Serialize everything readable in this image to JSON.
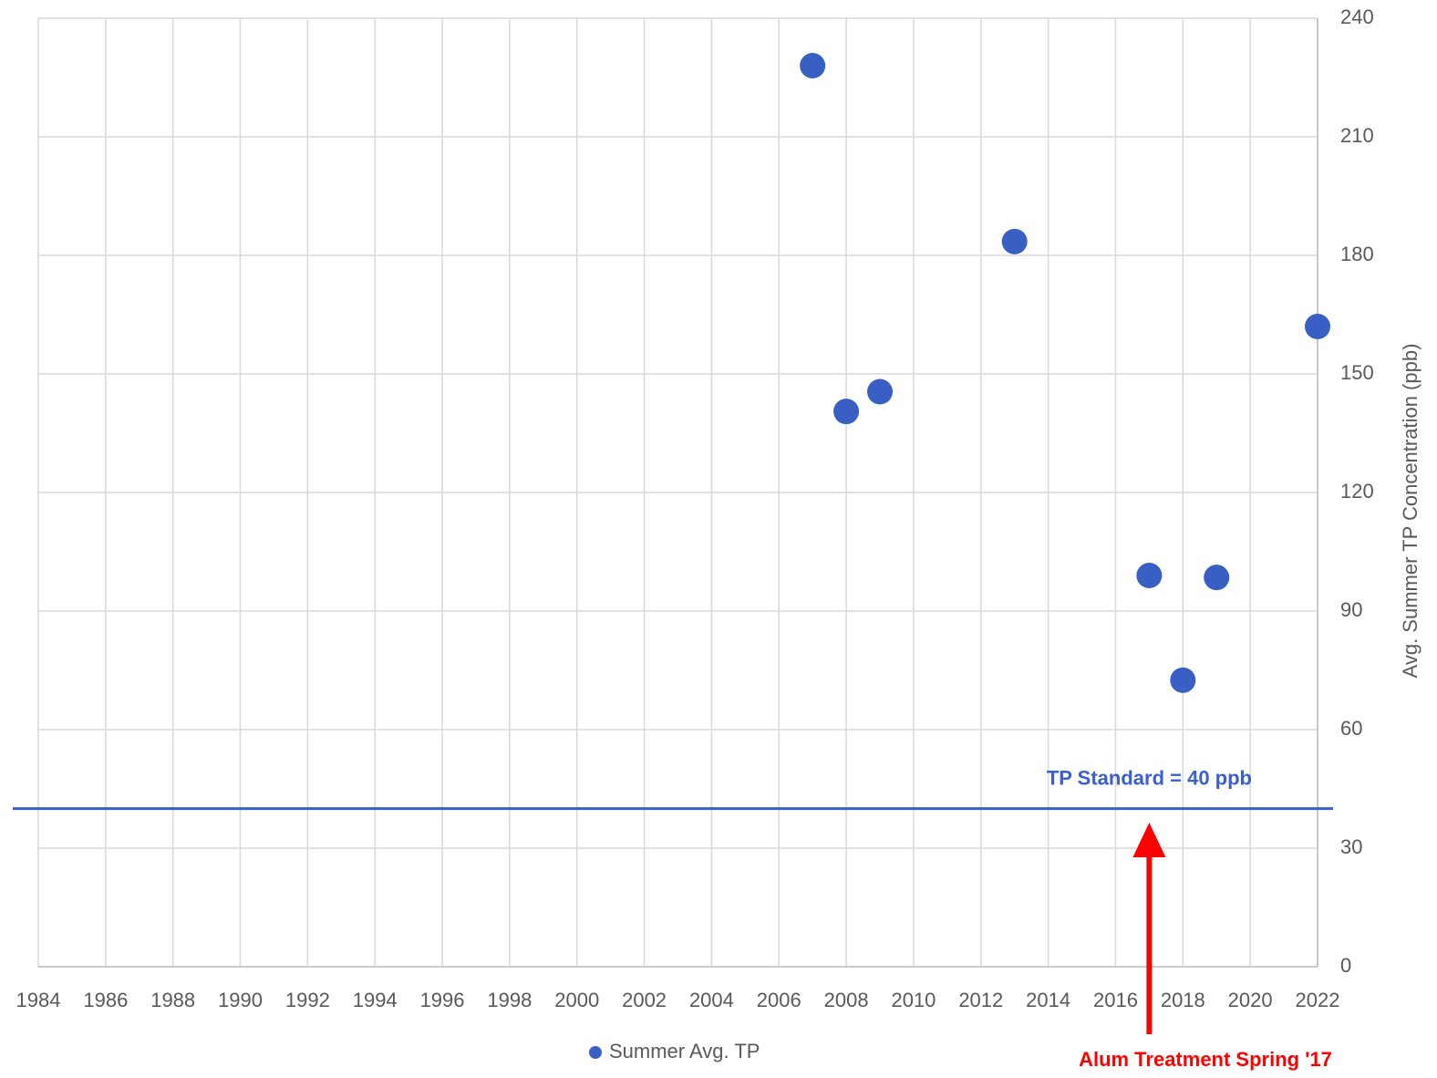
{
  "chart_data": {
    "type": "scatter",
    "x_label": null,
    "y_label": "Avg. Summer TP Concentration (ppb)",
    "yaxis_side": "right",
    "series": [
      {
        "name": "Summer Avg. TP",
        "color": "#3a5fc4",
        "x": [
          2007,
          2008,
          2009,
          2013,
          2017,
          2018,
          2019,
          2022
        ],
        "values": [
          228,
          140.5,
          145.5,
          183.5,
          99,
          72.5,
          98.5,
          162
        ]
      }
    ],
    "xlim": [
      1984,
      2022
    ],
    "xticks": [
      1984,
      1986,
      1988,
      1990,
      1992,
      1994,
      1996,
      1998,
      2000,
      2002,
      2004,
      2006,
      2008,
      2010,
      2012,
      2014,
      2016,
      2018,
      2020,
      2022
    ],
    "ylim": [
      0,
      240
    ],
    "yticks": [
      0,
      30,
      60,
      90,
      120,
      150,
      180,
      210,
      240
    ],
    "grid": true,
    "reference_line": {
      "value": 40,
      "label": "TP Standard = 40 ppb",
      "color": "#3a5fd0"
    },
    "annotation": {
      "text": "Alum Treatment Spring '17",
      "x": 2017,
      "color": "#ff0000"
    }
  }
}
